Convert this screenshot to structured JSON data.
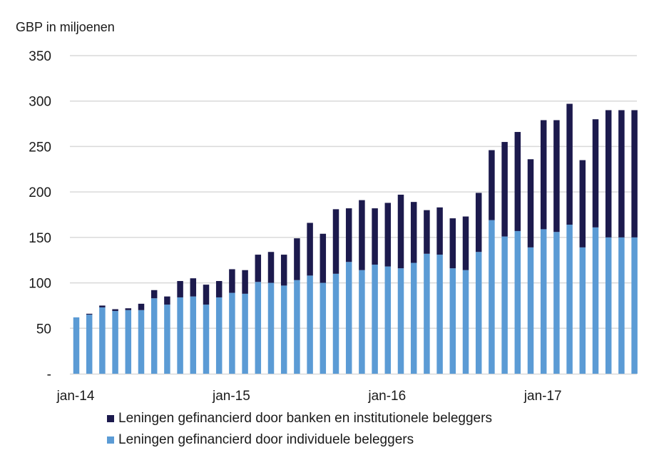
{
  "chart_data": {
    "type": "bar",
    "stacked": true,
    "unit_label": "GBP in miljoenen",
    "ylim": [
      0,
      350
    ],
    "y_ticks": [
      0,
      50,
      100,
      150,
      200,
      250,
      300,
      350
    ],
    "y_tick_labels": [
      "-",
      "50",
      "100",
      "150",
      "200",
      "250",
      "300",
      "350"
    ],
    "x_tick_labels": [
      {
        "label": "jan-14",
        "index": 0
      },
      {
        "label": "jan-15",
        "index": 12
      },
      {
        "label": "jan-16",
        "index": 24
      },
      {
        "label": "jan-17",
        "index": 36
      }
    ],
    "grid": true,
    "legend_position": "bottom",
    "categories": [
      "jan-14",
      "feb-14",
      "mrt-14",
      "apr-14",
      "mei-14",
      "jun-14",
      "jul-14",
      "aug-14",
      "sep-14",
      "okt-14",
      "nov-14",
      "dec-14",
      "jan-15",
      "feb-15",
      "mrt-15",
      "apr-15",
      "mei-15",
      "jun-15",
      "jul-15",
      "aug-15",
      "sep-15",
      "okt-15",
      "nov-15",
      "dec-15",
      "jan-16",
      "feb-16",
      "mrt-16",
      "apr-16",
      "mei-16",
      "jun-16",
      "jul-16",
      "aug-16",
      "sep-16",
      "okt-16",
      "nov-16",
      "dec-16",
      "jan-17",
      "feb-17",
      "mrt-17",
      "apr-17",
      "mei-17",
      "jun-17",
      "jul-17",
      "aug-17"
    ],
    "series": [
      {
        "name": "Leningen gefinancierd door individuele beleggers",
        "color": "#5b9bd5",
        "values": [
          62,
          65,
          73,
          69,
          70,
          70,
          83,
          76,
          84,
          85,
          76,
          84,
          89,
          88,
          101,
          100,
          97,
          103,
          108,
          100,
          110,
          123,
          114,
          120,
          118,
          116,
          122,
          132,
          131,
          116,
          114,
          134,
          169,
          151,
          157,
          139,
          159,
          156,
          164,
          139,
          161,
          150,
          150,
          150
        ]
      },
      {
        "name": "Leningen gefinancierd door banken en institutionele beleggers",
        "color": "#1c1a4d",
        "values": [
          0,
          1,
          2,
          2,
          2,
          7,
          9,
          9,
          18,
          20,
          22,
          18,
          26,
          26,
          30,
          34,
          34,
          46,
          58,
          54,
          71,
          59,
          77,
          62,
          70,
          81,
          67,
          48,
          52,
          55,
          59,
          65,
          77,
          104,
          109,
          97,
          120,
          123,
          133,
          96,
          119,
          140,
          140,
          140
        ]
      }
    ]
  }
}
